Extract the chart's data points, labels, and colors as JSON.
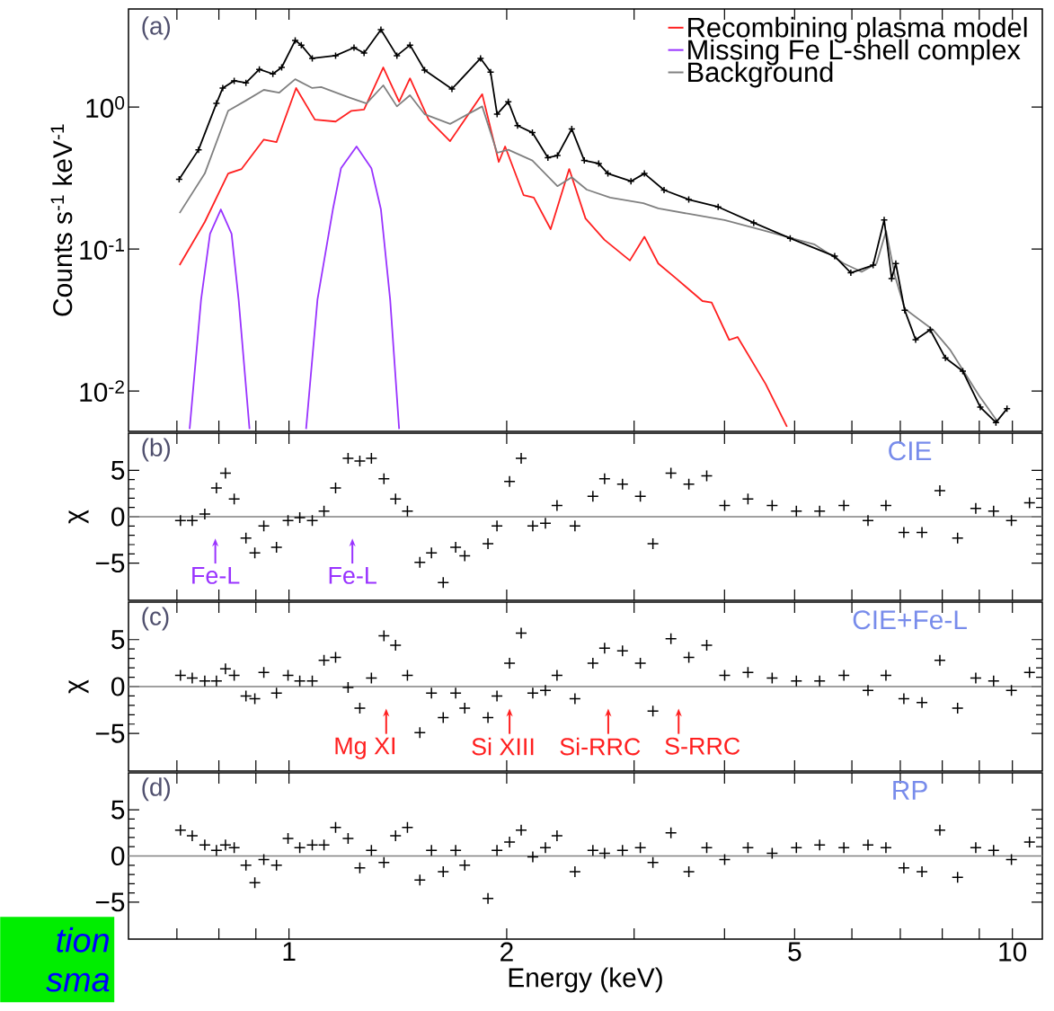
{
  "chart_data": [
    {
      "type": "line",
      "ylabel": "Counts s$^{-1}$ keV$^{-1}$",
      "log": "xy",
      "legend": "top right",
      "tick_labels": "y",
      "xlim": [
        0.6,
        11
      ],
      "ylim": [
        0.0052,
        4.9
      ],
      "xticks": [
        {
          "value": 0.7,
          "label": null
        },
        {
          "value": 0.8,
          "label": null
        },
        {
          "value": 0.9,
          "label": null
        },
        1,
        2,
        {
          "value": 3,
          "label": null
        },
        {
          "value": 4,
          "label": null
        },
        5,
        {
          "value": 6,
          "label": null
        },
        {
          "value": 7,
          "label": null
        },
        {
          "value": 8,
          "label": null
        },
        {
          "value": 9,
          "label": null
        },
        10
      ],
      "yticks": [
        {
          "value": 0.01,
          "label": "10$^{-2}$"
        },
        {
          "value": 0.1,
          "label": "10$^{-1}$"
        },
        {
          "value": 1,
          "label": "10$^{0}$"
        }
      ],
      "annotations": [
        "(a)"
      ],
      "series": [
        {
          "name": "Recombining plasma model",
          "color": "#ff2020",
          "x": [
            0.706,
            0.765,
            0.824,
            0.86,
            0.923,
            0.961,
            1.023,
            1.086,
            1.16,
            1.22,
            1.27,
            1.35,
            1.42,
            1.47,
            1.56,
            1.67,
            1.85,
            1.95,
            1.99,
            2.11,
            2.18,
            2.3,
            2.44,
            2.57,
            2.73,
            2.96,
            3.1,
            3.24,
            3.43,
            3.73,
            3.84,
            4.06,
            4.17,
            4.56,
            4.88
          ],
          "values": [
            0.077,
            0.155,
            0.34,
            0.366,
            0.59,
            0.566,
            1.36,
            0.815,
            0.79,
            0.94,
            0.96,
            1.9,
            1.09,
            1.59,
            0.815,
            0.575,
            1.23,
            0.41,
            0.527,
            0.24,
            0.23,
            0.138,
            0.366,
            0.164,
            0.116,
            0.083,
            0.122,
            0.079,
            0.062,
            0.043,
            0.042,
            0.0229,
            0.024,
            0.0112,
            0.0056
          ]
        },
        {
          "name": "Missing Fe L-shell complex",
          "color": "#9933ff",
          "x": [
            0.729,
            0.756,
            0.778,
            0.805,
            0.833,
            0.852,
            0.882,
            0.95,
            1.056,
            1.095,
            1.15,
            1.18,
            1.24,
            1.3,
            1.34,
            1.38,
            1.42
          ],
          "values": [
            0.0054,
            0.044,
            0.128,
            0.19,
            0.128,
            0.044,
            0.0054,
            null,
            0.0054,
            0.044,
            0.19,
            0.37,
            0.527,
            0.37,
            0.19,
            0.044,
            0.0054
          ]
        },
        {
          "name": "Background",
          "color": "#808080",
          "x": [
            0.706,
            0.765,
            0.824,
            0.872,
            0.923,
            0.969,
            1.02,
            1.077,
            1.108,
            1.21,
            1.28,
            1.35,
            1.41,
            1.47,
            1.54,
            1.67,
            1.85,
            1.94,
            2.01,
            2.17,
            2.35,
            2.46,
            2.58,
            2.78,
            3.09,
            3.24,
            3.57,
            4.0,
            4.61,
            5.32,
            5.85,
            6.19,
            6.49,
            6.69,
            6.88,
            7.1,
            7.77,
            8.21,
            8.99,
            9.56
          ],
          "values": [
            0.179,
            0.34,
            0.94,
            1.11,
            1.32,
            1.26,
            1.57,
            1.36,
            1.38,
            1.17,
            1.06,
            1.42,
            1.01,
            1.21,
            0.89,
            0.76,
            1.01,
            0.476,
            0.5,
            0.42,
            0.277,
            0.32,
            0.262,
            0.23,
            0.21,
            0.193,
            0.177,
            0.16,
            0.132,
            0.108,
            0.079,
            0.069,
            0.079,
            0.134,
            0.065,
            0.038,
            0.027,
            0.0194,
            0.0093,
            0.006
          ]
        },
        {
          "color": "#000000",
          "marker": "cross",
          "x": [
            0.705,
            0.75,
            0.794,
            0.81,
            0.84,
            0.872,
            0.91,
            0.95,
            0.977,
            1.02,
            1.04,
            1.077,
            1.16,
            1.23,
            1.27,
            1.34,
            1.41,
            1.47,
            1.54,
            1.68,
            1.84,
            1.9,
            1.94,
            2.01,
            2.07,
            2.17,
            2.28,
            2.35,
            2.46,
            2.56,
            2.68,
            2.76,
            2.97,
            3.1,
            3.3,
            3.57,
            3.92,
            4.39,
            4.93,
            5.68,
            5.98,
            6.42,
            6.65,
            6.81,
            6.9,
            7.1,
            7.35,
            7.7,
            8.08,
            8.54,
            9.03,
            9.49,
            9.83
          ],
          "values": [
            0.31,
            0.5,
            1.06,
            1.36,
            1.53,
            1.48,
            1.84,
            1.71,
            1.9,
            2.94,
            2.73,
            2.2,
            2.3,
            2.62,
            2.4,
            3.5,
            2.3,
            2.73,
            1.82,
            1.34,
            2.2,
            1.76,
            0.89,
            1.09,
            0.74,
            0.66,
            0.44,
            0.455,
            0.7,
            0.42,
            0.4,
            0.34,
            0.3,
            0.34,
            0.26,
            0.223,
            0.198,
            0.153,
            0.119,
            0.089,
            0.068,
            0.077,
            0.16,
            0.062,
            0.079,
            0.037,
            0.023,
            0.027,
            0.0171,
            0.0138,
            0.0077,
            0.006,
            0.0075
          ]
        }
      ]
    },
    {
      "type": "scatter",
      "ylabel": "χ",
      "log": "x",
      "marker": "cross",
      "tick_labels": "y",
      "xlim": [
        0.6,
        11
      ],
      "ylim": [
        -9,
        9
      ],
      "xticks": [
        {
          "value": 0.7,
          "label": null
        },
        {
          "value": 0.8,
          "label": null
        },
        {
          "value": 0.9,
          "label": null
        },
        1,
        2,
        {
          "value": 3,
          "label": null
        },
        {
          "value": 4,
          "label": null
        },
        5,
        {
          "value": 6,
          "label": null
        },
        {
          "value": 7,
          "label": null
        },
        {
          "value": 8,
          "label": null
        },
        {
          "value": 9,
          "label": null
        },
        10
      ],
      "yticks": [
        {
          "value": -5,
          "label": "−5"
        },
        0,
        5
      ],
      "ref_lines": [
        {
          "axis": "y",
          "value": 0,
          "color": "#808080"
        }
      ],
      "annotations": [
        "(b)",
        "CIE",
        "Fe-L",
        "Fe-L"
      ],
      "x": [
        0.708,
        0.735,
        0.765,
        0.794,
        0.817,
        0.84,
        0.872,
        0.897,
        0.923,
        0.961,
        0.997,
        1.035,
        1.077,
        1.118,
        1.16,
        1.207,
        1.253,
        1.3,
        1.353,
        1.404,
        1.458,
        1.517,
        1.574,
        1.634,
        1.7,
        1.75,
        1.884,
        1.939,
        2.018,
        2.094,
        2.173,
        2.262,
        2.347,
        2.485,
        2.631,
        2.731,
        2.891,
        3.06,
        3.185,
        3.373,
        3.571,
        3.78,
        4.002,
        4.31,
        4.655,
        5.028,
        5.415,
        5.849,
        6.316,
        6.687,
        7.08,
        7.5,
        7.94,
        8.4,
        8.9,
        9.42,
        9.97,
        10.56
      ],
      "series": [
        {
          "color": "#000000",
          "values": [
            -0.4,
            -0.4,
            0.3,
            3.1,
            4.7,
            1.9,
            -2.3,
            -3.9,
            -1.0,
            -3.3,
            -0.4,
            -0.1,
            -0.4,
            0.6,
            3.1,
            6.3,
            6.0,
            6.3,
            4.1,
            1.9,
            0.6,
            -4.9,
            -3.9,
            -7.1,
            -3.3,
            -4.2,
            -2.9,
            -1.0,
            3.8,
            6.3,
            -1.0,
            -0.7,
            1.2,
            -1.0,
            2.2,
            4.1,
            3.5,
            2.2,
            -2.9,
            4.7,
            3.5,
            4.4,
            1.2,
            1.9,
            1.2,
            0.6,
            0.6,
            1.2,
            -0.4,
            1.2,
            -1.7,
            -1.7,
            2.8,
            -2.3,
            0.9,
            0.6,
            -0.4,
            1.5
          ]
        }
      ]
    },
    {
      "type": "scatter",
      "ylabel": "χ",
      "log": "x",
      "marker": "cross",
      "tick_labels": "y",
      "xlim": [
        0.6,
        11
      ],
      "ylim": [
        -9,
        9
      ],
      "xticks": [
        {
          "value": 0.7,
          "label": null
        },
        {
          "value": 0.8,
          "label": null
        },
        {
          "value": 0.9,
          "label": null
        },
        1,
        2,
        {
          "value": 3,
          "label": null
        },
        {
          "value": 4,
          "label": null
        },
        5,
        {
          "value": 6,
          "label": null
        },
        {
          "value": 7,
          "label": null
        },
        {
          "value": 8,
          "label": null
        },
        {
          "value": 9,
          "label": null
        },
        10
      ],
      "yticks": [
        {
          "value": -5,
          "label": "−5"
        },
        0,
        5
      ],
      "ref_lines": [
        {
          "axis": "y",
          "value": 0,
          "color": "#808080"
        }
      ],
      "annotations": [
        "(c)",
        "CIE+Fe-L",
        "Mg XI",
        "Si XIII",
        "Si-RRC",
        "S-RRC"
      ],
      "x": [
        0.708,
        0.735,
        0.765,
        0.794,
        0.817,
        0.84,
        0.872,
        0.897,
        0.923,
        0.961,
        0.997,
        1.035,
        1.077,
        1.118,
        1.16,
        1.207,
        1.253,
        1.3,
        1.353,
        1.404,
        1.458,
        1.517,
        1.574,
        1.634,
        1.7,
        1.75,
        1.884,
        1.939,
        2.018,
        2.094,
        2.173,
        2.262,
        2.347,
        2.485,
        2.631,
        2.731,
        2.891,
        3.06,
        3.185,
        3.373,
        3.571,
        3.78,
        4.002,
        4.31,
        4.655,
        5.028,
        5.415,
        5.849,
        6.316,
        6.687,
        7.08,
        7.5,
        7.94,
        8.4,
        8.9,
        9.42,
        9.97,
        10.56
      ],
      "series": [
        {
          "color": "#000000",
          "values": [
            1.2,
            0.9,
            0.6,
            0.6,
            1.9,
            1.2,
            -1.0,
            -1.3,
            1.5,
            -0.7,
            1.2,
            0.6,
            0.6,
            2.8,
            3.1,
            -0.1,
            -2.3,
            0.9,
            5.4,
            4.4,
            1.2,
            -4.9,
            -0.7,
            -3.3,
            -0.7,
            -2.3,
            -3.3,
            -1.0,
            2.5,
            5.7,
            -0.7,
            -0.4,
            1.2,
            -1.3,
            2.5,
            4.1,
            3.8,
            2.5,
            -2.6,
            5.1,
            3.1,
            4.4,
            1.2,
            1.5,
            0.9,
            0.6,
            0.6,
            1.2,
            -0.4,
            1.2,
            -1.3,
            -1.7,
            2.8,
            -2.3,
            0.9,
            0.6,
            -0.4,
            1.5
          ]
        }
      ]
    },
    {
      "type": "scatter",
      "xlabel": "Energy (keV)",
      "log": "x",
      "marker": "cross",
      "xlim": [
        0.6,
        11
      ],
      "ylim": [
        -9,
        9
      ],
      "xticks": [
        {
          "value": 0.7,
          "label": null
        },
        {
          "value": 0.8,
          "label": null
        },
        {
          "value": 0.9,
          "label": null
        },
        1,
        2,
        {
          "value": 3,
          "label": null
        },
        {
          "value": 4,
          "label": null
        },
        5,
        {
          "value": 6,
          "label": null
        },
        {
          "value": 7,
          "label": null
        },
        {
          "value": 8,
          "label": null
        },
        {
          "value": 9,
          "label": null
        },
        10
      ],
      "yticks": [
        {
          "value": -5,
          "label": "−5"
        },
        0,
        5
      ],
      "ref_lines": [
        {
          "axis": "y",
          "value": 0,
          "color": "#808080"
        }
      ],
      "annotations": [
        "(d)",
        "RP",
        "tion",
        "sma"
      ],
      "x": [
        0.708,
        0.735,
        0.765,
        0.794,
        0.817,
        0.84,
        0.872,
        0.897,
        0.923,
        0.961,
        0.997,
        1.035,
        1.077,
        1.118,
        1.16,
        1.207,
        1.253,
        1.3,
        1.353,
        1.404,
        1.458,
        1.517,
        1.574,
        1.634,
        1.7,
        1.75,
        1.884,
        1.939,
        2.018,
        2.094,
        2.173,
        2.262,
        2.347,
        2.485,
        2.631,
        2.731,
        2.891,
        3.06,
        3.185,
        3.373,
        3.571,
        3.78,
        4.002,
        4.31,
        4.655,
        5.028,
        5.415,
        5.849,
        6.316,
        6.687,
        7.08,
        7.5,
        7.94,
        8.4,
        8.9,
        9.42,
        9.97,
        10.56
      ],
      "series": [
        {
          "color": "#000000",
          "values": [
            2.8,
            2.2,
            1.2,
            0.6,
            1.2,
            0.9,
            -1.0,
            -2.9,
            -0.4,
            -1.0,
            1.9,
            0.9,
            1.2,
            1.2,
            3.1,
            1.9,
            -1.3,
            0.6,
            -0.7,
            2.2,
            3.1,
            -2.6,
            0.6,
            -1.7,
            0.6,
            -1.0,
            -4.6,
            0.6,
            1.5,
            2.8,
            -0.1,
            0.9,
            2.2,
            -1.7,
            0.6,
            0.3,
            0.6,
            0.9,
            -0.7,
            2.5,
            -1.7,
            0.9,
            -0.4,
            0.9,
            0.3,
            0.9,
            1.2,
            0.9,
            1.2,
            0.9,
            -1.3,
            -1.7,
            2.8,
            -2.3,
            0.9,
            0.6,
            -0.4,
            1.5
          ]
        }
      ]
    }
  ]
}
